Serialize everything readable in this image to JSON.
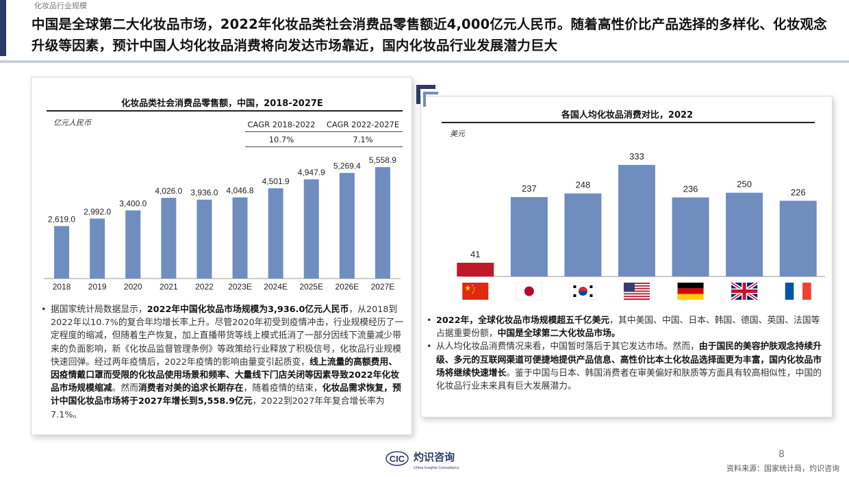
{
  "section_label": "化妆品行业规模",
  "headline": "中国是全球第二大化妆品市场，2022年化妆品类社会消费品零售额近4,000亿元人民币。随着高性价比产品选择的多样化、化妆观念升级等因素，预计中国人均化妆品消费将向发达市场靠近，国内化妆品行业发展潜力巨大",
  "left_panel": {
    "chart_title": "化妆品类社会消费品零售额，中国，2018-2027E",
    "unit": "亿元人民币",
    "cagr": [
      {
        "label": "CAGR 2018-2022",
        "value": "10.7%"
      },
      {
        "label": "CAGR 2022-2027E",
        "value": "7.1%"
      }
    ],
    "bullet_parts": [
      {
        "t": "据国家统计局数据显示，",
        "b": false
      },
      {
        "t": "2022年中国化妆品市场规模为3,936.0亿元人民币",
        "b": true
      },
      {
        "t": "，从2018到2022年以10.7%的复合年均增长率上升。尽管2020年初受到疫情冲击，行业规模经历了一定程度的缩减，但随着生产恢复，加上直播带货等线上模式抵消了一部分因线下流量减少带来的负面影响，新《化妆品监督管理条例》等政策给行业释放了积极信号，化妆品行业规模快速回弹。经过两年疫情后，2022年疫情的影响由量变引起质变，",
        "b": false
      },
      {
        "t": "线上流量的高额费用、因疫情戴口罩而受限的化妆品使用场景和频率、大量线下门店关闭等因素导致2022年化妆品市场规模缩减",
        "b": true
      },
      {
        "t": "。然而",
        "b": false
      },
      {
        "t": "消费者对美的追求长期存在",
        "b": true
      },
      {
        "t": "，随着疫情的结束，",
        "b": false
      },
      {
        "t": "化妆品需求恢复，预计中国化妆品市场将于2027年增长到5,558.9亿元",
        "b": true
      },
      {
        "t": "，2022到2027年年复合增长率为7.1%。",
        "b": false
      }
    ]
  },
  "right_panel": {
    "chart_title": "各国人均化妆品消费对比，2022",
    "unit": "美元",
    "bullets": [
      [
        {
          "t": "2022年，全球化妆品市场规模超五千亿美元",
          "b": true
        },
        {
          "t": "，其中美国、中国、日本、韩国、德国、英国、法国等占据重要份额，",
          "b": false
        },
        {
          "t": "中国是全球第二大化妆品市场。",
          "b": true
        }
      ],
      [
        {
          "t": "从人均化妆品消费情况来看，中国暂时落后于其它发达市场。然而，",
          "b": false
        },
        {
          "t": "由于国民的美容护肤观念持续升级、多元的互联网渠道可便捷地提供产品信息、高性价比本土化妆品选择面更为丰富，国内化妆品市场将继续快速增长",
          "b": true
        },
        {
          "t": "。鉴于中国与日本、韩国消费者在审美偏好和肤质等方面具有较高相似性，中国的化妆品行业未来具有巨大发展潜力。",
          "b": false
        }
      ]
    ]
  },
  "chart_data": [
    {
      "type": "bar",
      "title": "化妆品类社会消费品零售额，中国，2018-2027E",
      "ylabel": "亿元人民币",
      "categories": [
        "2018",
        "2019",
        "2020",
        "2021",
        "2022",
        "2023E",
        "2024E",
        "2025E",
        "2026E",
        "2027E"
      ],
      "values": [
        2619.0,
        2992.0,
        3400.0,
        4026.0,
        3936.0,
        4046.8,
        4501.9,
        4947.9,
        5269.4,
        5558.9
      ],
      "value_labels": [
        "2,619.0",
        "2,992.0",
        "3,400.0",
        "4,026.0",
        "3,936.0",
        "4,046.8",
        "4,501.9",
        "4,947.9",
        "5,269.4",
        "5,558.9"
      ],
      "ylim": [
        0,
        5600
      ],
      "grid": false,
      "color": "#6f8ebf"
    },
    {
      "type": "bar",
      "title": "各国人均化妆品消费对比，2022",
      "ylabel": "美元",
      "categories": [
        "中国",
        "日本",
        "韩国",
        "美国",
        "德国",
        "英国",
        "法国"
      ],
      "flags": [
        "cn-flag-icon",
        "jp-flag-icon",
        "kr-flag-icon",
        "us-flag-icon",
        "de-flag-icon",
        "uk-flag-icon",
        "fr-flag-icon"
      ],
      "values": [
        41,
        237,
        248,
        333,
        236,
        250,
        226
      ],
      "ylim": [
        0,
        333
      ],
      "grid": false,
      "colors": [
        "#c0192b",
        "#6f8ebf",
        "#6f8ebf",
        "#6f8ebf",
        "#6f8ebf",
        "#6f8ebf",
        "#6f8ebf"
      ]
    }
  ],
  "footer": {
    "logo_mark": "CIC",
    "logo_cn": "灼识咨询",
    "logo_en": "China Insights Consultancy",
    "page_number": "8",
    "source": "资料来源：国家统计局，灼识咨询"
  },
  "colors": {
    "navy": "#2b3a67",
    "bar_blue": "#6f8ebf",
    "bar_red": "#c0192b"
  }
}
